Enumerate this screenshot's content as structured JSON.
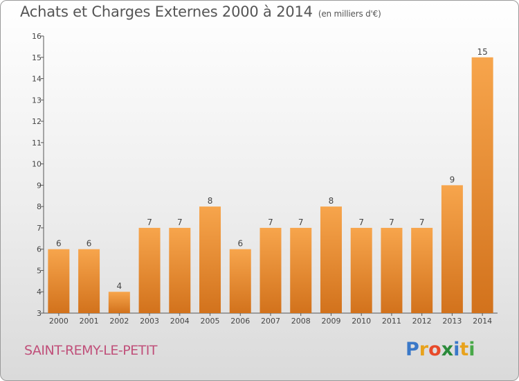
{
  "header": {
    "title": "Achats et Charges Externes 2000 à 2014",
    "unit": "(en milliers d'€)"
  },
  "footer": {
    "commune": "SAINT-REMY-LE-PETIT",
    "logo_letters": [
      "P",
      "r",
      "o",
      "x",
      "i",
      "t",
      "i"
    ],
    "logo_colors": [
      "#3a78c8",
      "#e8a21c",
      "#e84a2a",
      "#2a8a3a",
      "#3a78c8",
      "#e8a21c",
      "#48a848"
    ]
  },
  "chart_data": {
    "type": "bar",
    "title": "Achats et Charges Externes 2000 à 2014",
    "subtitle": "(en milliers d'€)",
    "categories": [
      "2000",
      "2001",
      "2002",
      "2003",
      "2004",
      "2005",
      "2006",
      "2007",
      "2008",
      "2009",
      "2010",
      "2011",
      "2012",
      "2013",
      "2014"
    ],
    "values": [
      6,
      6,
      4,
      7,
      7,
      8,
      6,
      7,
      7,
      8,
      7,
      7,
      7,
      9,
      15
    ],
    "data_labels": [
      "6",
      "6",
      "4",
      "7",
      "7",
      "8",
      "6",
      "7",
      "7",
      "8",
      "7",
      "7",
      "7",
      "9",
      "15"
    ],
    "yticks": [
      "3",
      "4",
      "5",
      "6",
      "7",
      "8",
      "9",
      "10",
      "11",
      "12",
      "13",
      "14",
      "15",
      "16"
    ],
    "ylim": [
      3,
      16
    ],
    "grid": false,
    "bar_color_top": "#f7a54c",
    "bar_color_bottom": "#d2721c"
  }
}
